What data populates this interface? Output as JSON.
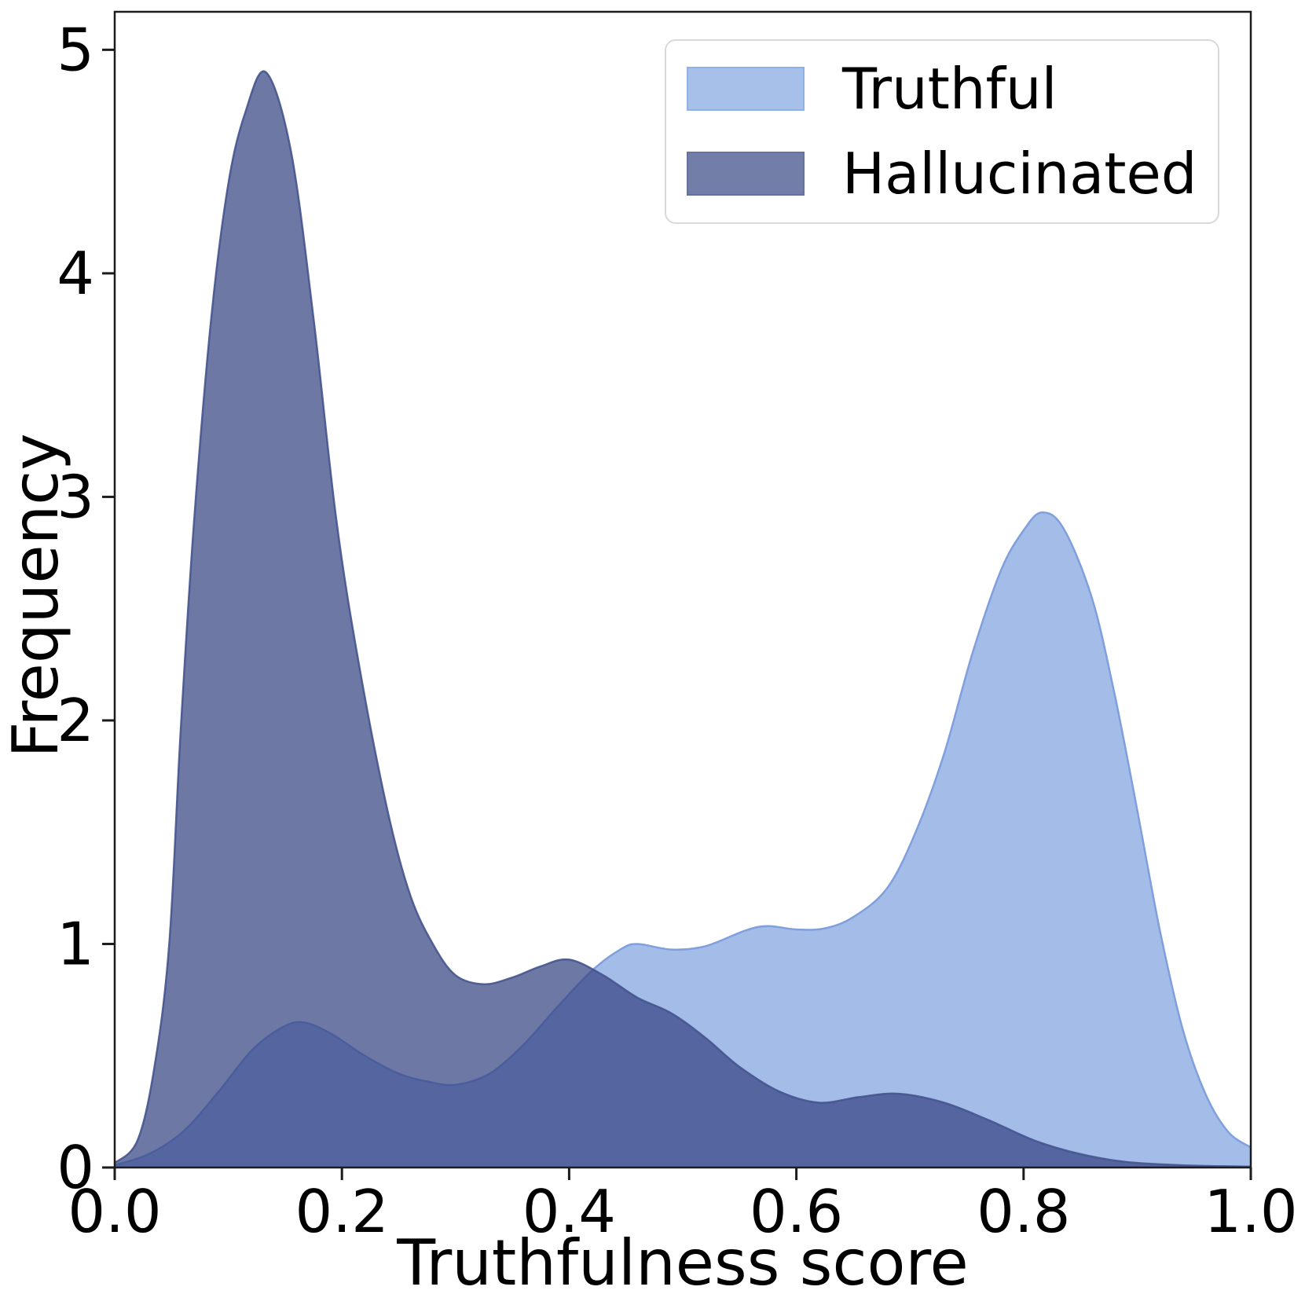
{
  "chart_data": {
    "type": "area",
    "subtype": "kde-density",
    "title": "",
    "xlabel": "Truthfulness score",
    "ylabel": "Frequency",
    "xlim": [
      0.0,
      1.0
    ],
    "ylim": [
      0.0,
      5.17
    ],
    "grid": false,
    "xticks": {
      "values": [
        0.0,
        0.2,
        0.4,
        0.6,
        0.8,
        1.0
      ],
      "labels": [
        "0.0",
        "0.2",
        "0.4",
        "0.6",
        "0.8",
        "1.0"
      ]
    },
    "yticks": {
      "values": [
        0,
        1,
        2,
        3,
        4,
        5
      ],
      "labels": [
        "0",
        "1",
        "2",
        "3",
        "4",
        "5"
      ]
    },
    "legend": {
      "position": "upper right",
      "entries": [
        {
          "label": "Truthful",
          "color": "#a7c0ea",
          "edge": "#8fb0e4"
        },
        {
          "label": "Hallucinated",
          "color": "#727ea7",
          "edge": "#67719f"
        }
      ]
    },
    "colors": {
      "spine": "#1c1c1c",
      "tick": "#1c1c1c",
      "text": "#000000",
      "truthful_fill": "#a3bce8",
      "truthful_stroke": "#7f9fdd",
      "hallucinated_fill": "#364482",
      "hallucinated_fill_opacity": 0.72,
      "hallucinated_stroke": "#46548e"
    },
    "series": [
      {
        "name": "Truthful",
        "role": "truthful",
        "peak": {
          "x": 0.816,
          "y": 2.93
        },
        "points": [
          [
            0.0,
            0.01
          ],
          [
            0.03,
            0.06
          ],
          [
            0.06,
            0.16
          ],
          [
            0.09,
            0.33
          ],
          [
            0.12,
            0.52
          ],
          [
            0.145,
            0.62
          ],
          [
            0.165,
            0.65
          ],
          [
            0.19,
            0.6
          ],
          [
            0.22,
            0.5
          ],
          [
            0.25,
            0.42
          ],
          [
            0.275,
            0.385
          ],
          [
            0.3,
            0.37
          ],
          [
            0.33,
            0.42
          ],
          [
            0.36,
            0.55
          ],
          [
            0.39,
            0.72
          ],
          [
            0.42,
            0.88
          ],
          [
            0.445,
            0.975
          ],
          [
            0.46,
            1.0
          ],
          [
            0.49,
            0.975
          ],
          [
            0.52,
            0.99
          ],
          [
            0.555,
            1.06
          ],
          [
            0.575,
            1.08
          ],
          [
            0.6,
            1.065
          ],
          [
            0.625,
            1.07
          ],
          [
            0.65,
            1.12
          ],
          [
            0.68,
            1.25
          ],
          [
            0.705,
            1.5
          ],
          [
            0.73,
            1.85
          ],
          [
            0.755,
            2.3
          ],
          [
            0.78,
            2.67
          ],
          [
            0.8,
            2.85
          ],
          [
            0.816,
            2.93
          ],
          [
            0.835,
            2.86
          ],
          [
            0.86,
            2.55
          ],
          [
            0.88,
            2.12
          ],
          [
            0.9,
            1.6
          ],
          [
            0.92,
            1.06
          ],
          [
            0.94,
            0.62
          ],
          [
            0.96,
            0.33
          ],
          [
            0.98,
            0.16
          ],
          [
            1.0,
            0.09
          ]
        ]
      },
      {
        "name": "Hallucinated",
        "role": "hallucinated",
        "peak": {
          "x": 0.133,
          "y": 4.9
        },
        "points": [
          [
            0.0,
            0.02
          ],
          [
            0.02,
            0.12
          ],
          [
            0.035,
            0.45
          ],
          [
            0.048,
            1.0
          ],
          [
            0.058,
            1.95
          ],
          [
            0.07,
            2.9
          ],
          [
            0.085,
            3.8
          ],
          [
            0.1,
            4.4
          ],
          [
            0.115,
            4.72
          ],
          [
            0.133,
            4.9
          ],
          [
            0.155,
            4.55
          ],
          [
            0.175,
            3.8
          ],
          [
            0.195,
            2.9
          ],
          [
            0.215,
            2.25
          ],
          [
            0.24,
            1.6
          ],
          [
            0.26,
            1.22
          ],
          [
            0.28,
            1.0
          ],
          [
            0.3,
            0.86
          ],
          [
            0.325,
            0.82
          ],
          [
            0.35,
            0.85
          ],
          [
            0.375,
            0.9
          ],
          [
            0.4,
            0.93
          ],
          [
            0.43,
            0.86
          ],
          [
            0.46,
            0.76
          ],
          [
            0.49,
            0.69
          ],
          [
            0.52,
            0.58
          ],
          [
            0.55,
            0.45
          ],
          [
            0.585,
            0.34
          ],
          [
            0.62,
            0.29
          ],
          [
            0.655,
            0.315
          ],
          [
            0.69,
            0.33
          ],
          [
            0.73,
            0.29
          ],
          [
            0.77,
            0.21
          ],
          [
            0.81,
            0.12
          ],
          [
            0.85,
            0.06
          ],
          [
            0.89,
            0.025
          ],
          [
            0.94,
            0.01
          ],
          [
            1.0,
            0.004
          ]
        ]
      }
    ]
  }
}
